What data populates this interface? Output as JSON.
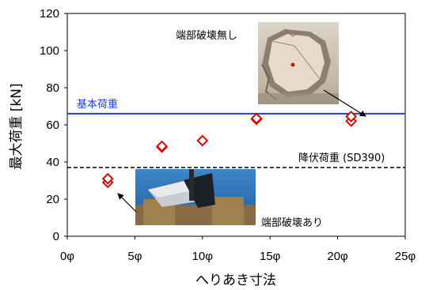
{
  "chart_data": {
    "type": "scatter",
    "xlabel": "へりあき寸法",
    "ylabel": "最大荷重 [kN]",
    "xlim": [
      0,
      25
    ],
    "ylim": [
      0,
      120
    ],
    "x_ticks": [
      0,
      5,
      10,
      15,
      20,
      25
    ],
    "x_tick_labels": [
      "0φ",
      "5φ",
      "10φ",
      "15φ",
      "20φ",
      "25φ"
    ],
    "y_ticks": [
      0,
      20,
      40,
      60,
      80,
      100,
      120
    ],
    "y_tick_labels": [
      "0",
      "20",
      "40",
      "60",
      "80",
      "100",
      "120"
    ],
    "grid": false,
    "series": [
      {
        "marker": "diamond-open",
        "color": "#e00000",
        "points": [
          {
            "x": 3,
            "y": 29
          },
          {
            "x": 3,
            "y": 31
          },
          {
            "x": 7,
            "y": 48
          },
          {
            "x": 7,
            "y": 48.5
          },
          {
            "x": 10,
            "y": 51.5
          },
          {
            "x": 14,
            "y": 63
          },
          {
            "x": 14,
            "y": 63.5
          },
          {
            "x": 21,
            "y": 62
          },
          {
            "x": 21,
            "y": 64.5
          }
        ]
      }
    ],
    "reference_lines": [
      {
        "label": "基本荷重",
        "y": 66,
        "style": "solid",
        "color": "#1f3fd0"
      },
      {
        "label": "降伏荷重 (SD390)",
        "y": 37,
        "style": "dashed",
        "color": "#000000"
      }
    ],
    "annotations": [
      {
        "text": "端部破壊無し",
        "points_to": {
          "x": 21,
          "y": 64
        }
      },
      {
        "text": "端部破壊あり",
        "points_to": {
          "x": 3,
          "y": 30
        }
      }
    ]
  }
}
